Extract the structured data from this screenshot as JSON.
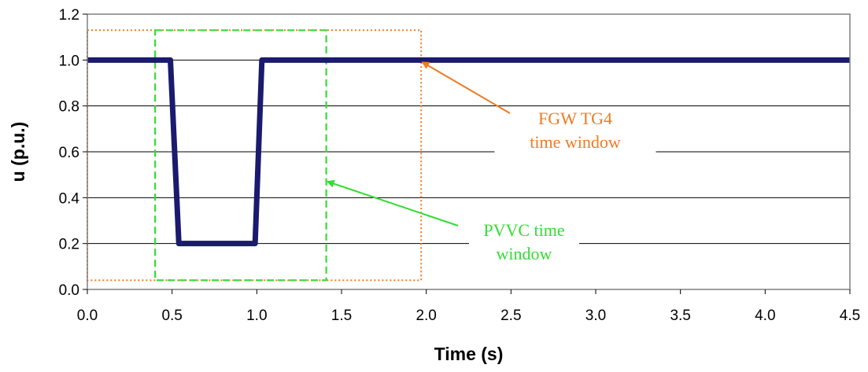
{
  "chart_data": {
    "type": "line",
    "xlabel": "Time (s)",
    "ylabel": "u (p.u.)",
    "xlim": [
      0,
      4.5
    ],
    "ylim": [
      0,
      1.2
    ],
    "x_ticks": [
      "0.0",
      "0.5",
      "1.0",
      "1.5",
      "2.0",
      "2.5",
      "3.0",
      "3.5",
      "4.0",
      "4.5"
    ],
    "y_ticks": [
      "0.0",
      "0.2",
      "0.4",
      "0.6",
      "0.8",
      "1.0",
      "1.2"
    ],
    "grid": "horizontal",
    "series": [
      {
        "color": "#1a1a6e",
        "points": [
          {
            "x": 0.0,
            "y": 1.0
          },
          {
            "x": 0.49,
            "y": 1.0
          },
          {
            "x": 0.54,
            "y": 0.2
          },
          {
            "x": 0.99,
            "y": 0.2
          },
          {
            "x": 1.03,
            "y": 1.0
          },
          {
            "x": 4.5,
            "y": 1.0
          }
        ]
      }
    ],
    "regions": [
      {
        "id": "fgw",
        "color": "#f07a22",
        "style": "dotted",
        "x": [
          0.0,
          1.97
        ],
        "y": [
          0.04,
          1.13
        ]
      },
      {
        "id": "pvvc",
        "color": "#33dd33",
        "style": "dashed",
        "x": [
          0.4,
          1.41
        ],
        "y": [
          0.04,
          1.13
        ]
      }
    ],
    "annotations": [
      {
        "id": "fgw",
        "lines": [
          "FGW TG4",
          "time window"
        ],
        "color": "#f07a22",
        "target": {
          "x": 1.97,
          "y": 1.0
        }
      },
      {
        "id": "pvvc",
        "lines": [
          "PVVC time",
          "window"
        ],
        "color": "#33dd33",
        "target": {
          "x": 1.41,
          "y": 0.48
        }
      }
    ]
  }
}
